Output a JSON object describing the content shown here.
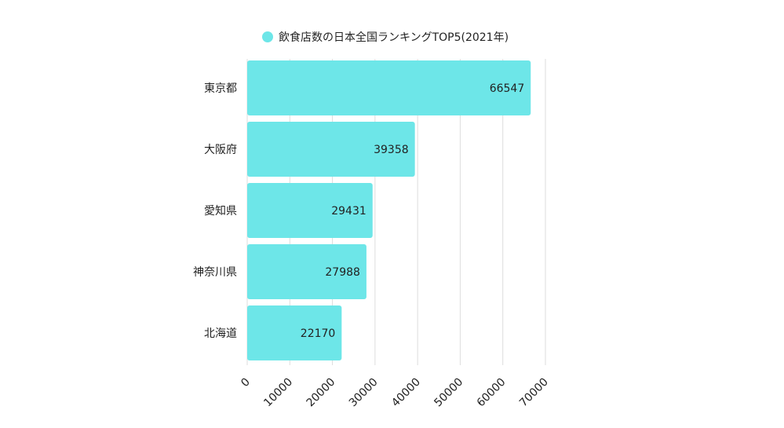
{
  "chart_data": {
    "type": "bar",
    "orientation": "horizontal",
    "categories": [
      "東京都",
      "大阪府",
      "愛知県",
      "神奈川県",
      "北海道"
    ],
    "series": [
      {
        "name": "飲食店数の日本全国ランキングTOP5(2021年)",
        "values": [
          66547,
          39358,
          29431,
          27988,
          22170
        ]
      }
    ],
    "xlim": [
      0,
      70000
    ],
    "x_ticks": [
      "0",
      "10000",
      "20000",
      "30000",
      "40000",
      "50000",
      "60000",
      "70000"
    ],
    "grid": "vertical",
    "legend_position": "top",
    "bar_color": "#6de6e8",
    "grid_color": "#dddddd"
  }
}
